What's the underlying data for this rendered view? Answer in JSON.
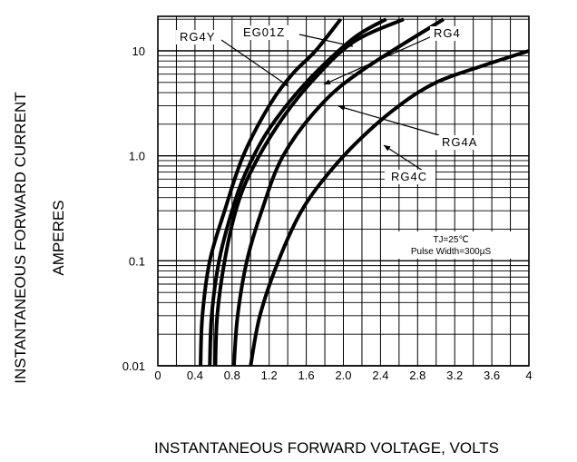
{
  "chart_data": {
    "type": "line",
    "title": "",
    "xlabel": "INSTANTANEOUS FORWARD VOLTAGE,  VOLTS",
    "ylabel": [
      "INSTANTANEOUS FORWARD CURRENT",
      "AMPERES"
    ],
    "xlim": [
      0,
      4
    ],
    "ylim": [
      0.01,
      20
    ],
    "yscale": "log",
    "grid": true,
    "x_ticks": [
      {
        "value": 0,
        "label": "0"
      },
      {
        "value": 0.4,
        "label": "0.4"
      },
      {
        "value": 0.8,
        "label": "0.8"
      },
      {
        "value": 1.2,
        "label": "1.2"
      },
      {
        "value": 1.6,
        "label": "1.6"
      },
      {
        "value": 2.0,
        "label": "2.0"
      },
      {
        "value": 2.4,
        "label": "2.4"
      },
      {
        "value": 2.8,
        "label": "2.8"
      },
      {
        "value": 3.2,
        "label": "3.2"
      },
      {
        "value": 3.6,
        "label": "3.6"
      },
      {
        "value": 4.0,
        "label": "4"
      }
    ],
    "y_ticks": [
      {
        "value": 0.01,
        "label": "0.01"
      },
      {
        "value": 0.1,
        "label": "0.1"
      },
      {
        "value": 1.0,
        "label": "1.0"
      },
      {
        "value": 10,
        "label": "10"
      }
    ],
    "annotations": [
      "TJ=25℃",
      "Pulse Width=300µS"
    ],
    "series": [
      {
        "name": "RG4Y",
        "points": [
          [
            0.46,
            0.01
          ],
          [
            0.48,
            0.03
          ],
          [
            0.56,
            0.1
          ],
          [
            0.72,
            0.3
          ],
          [
            0.92,
            1.0
          ],
          [
            1.2,
            3.0
          ],
          [
            1.45,
            6.0
          ],
          [
            1.7,
            10
          ],
          [
            1.97,
            20
          ]
        ]
      },
      {
        "name": "EG01Z",
        "points": [
          [
            0.56,
            0.01
          ],
          [
            0.58,
            0.03
          ],
          [
            0.66,
            0.1
          ],
          [
            0.8,
            0.3
          ],
          [
            0.95,
            0.7
          ],
          [
            1.2,
            1.8
          ],
          [
            1.6,
            5.0
          ],
          [
            2.1,
            13
          ],
          [
            2.46,
            20
          ]
        ]
      },
      {
        "name": "RG4",
        "points": [
          [
            0.62,
            0.01
          ],
          [
            0.64,
            0.03
          ],
          [
            0.72,
            0.1
          ],
          [
            0.84,
            0.3
          ],
          [
            1.0,
            0.7
          ],
          [
            1.3,
            2.0
          ],
          [
            1.65,
            5.0
          ],
          [
            2.1,
            12
          ],
          [
            2.65,
            20
          ]
        ]
      },
      {
        "name": "RG4A",
        "points": [
          [
            0.82,
            0.01
          ],
          [
            0.86,
            0.03
          ],
          [
            0.96,
            0.1
          ],
          [
            1.12,
            0.3
          ],
          [
            1.35,
            1.0
          ],
          [
            1.75,
            3.0
          ],
          [
            2.2,
            6.5
          ],
          [
            3.08,
            20
          ]
        ]
      },
      {
        "name": "RG4C",
        "points": [
          [
            1.0,
            0.01
          ],
          [
            1.1,
            0.03
          ],
          [
            1.3,
            0.1
          ],
          [
            1.55,
            0.3
          ],
          [
            1.85,
            0.7
          ],
          [
            2.2,
            1.5
          ],
          [
            2.6,
            3.0
          ],
          [
            3.0,
            5.0
          ],
          [
            3.5,
            7.2
          ],
          [
            4.0,
            10
          ]
        ]
      }
    ],
    "series_labels": [
      "RG4Y",
      "EG01Z",
      "RG4",
      "RG4A",
      "RG4C"
    ]
  }
}
